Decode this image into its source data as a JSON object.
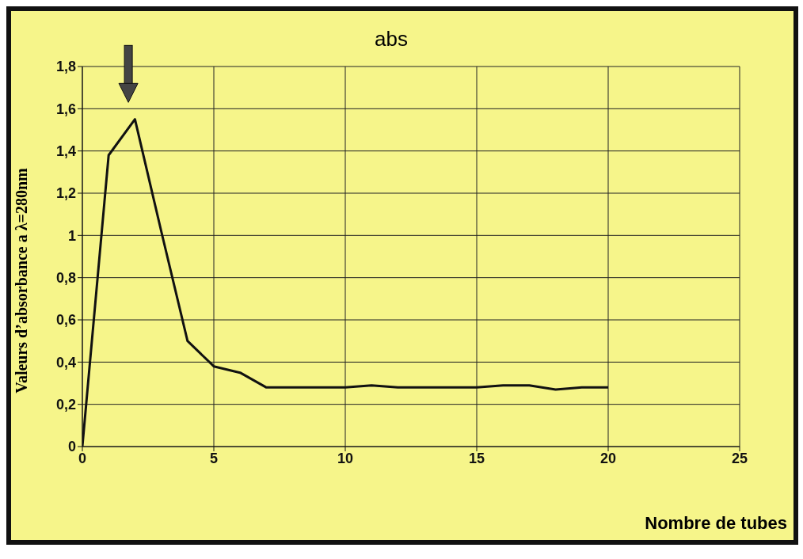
{
  "chart_data": {
    "type": "line",
    "title": "abs",
    "xlabel": "Nombre de tubes",
    "ylabel": "Valeurs d’absorbance a λ=280nm",
    "x": [
      0,
      1,
      2,
      3,
      4,
      5,
      6,
      7,
      8,
      9,
      10,
      11,
      12,
      13,
      14,
      15,
      16,
      17,
      18,
      19,
      20
    ],
    "series": [
      {
        "color": "#111111",
        "values": [
          0,
          1.38,
          1.55,
          1.02,
          0.5,
          0.38,
          0.35,
          0.28,
          0.28,
          0.28,
          0.28,
          0.29,
          0.28,
          0.28,
          0.28,
          0.28,
          0.29,
          0.29,
          0.27,
          0.28,
          0.28
        ]
      }
    ],
    "xlim": [
      0,
      25
    ],
    "xticks": [
      0,
      5,
      10,
      15,
      20,
      25
    ],
    "ylim": [
      0,
      1.8
    ],
    "yticks": [
      0,
      {
        "value": 0.2,
        "label": "0,2"
      },
      {
        "value": 0.4,
        "label": "0,4"
      },
      {
        "value": 0.6,
        "label": "0,6"
      },
      {
        "value": 0.8,
        "label": "0,8"
      },
      1,
      {
        "value": 1.2,
        "label": "1,2"
      },
      {
        "value": 1.4,
        "label": "1,4"
      },
      {
        "value": 1.6,
        "label": "1,6"
      },
      {
        "value": 1.8,
        "label": "1,8"
      }
    ],
    "grid": true,
    "legend": false,
    "marker": "none",
    "line_style": "solid"
  }
}
